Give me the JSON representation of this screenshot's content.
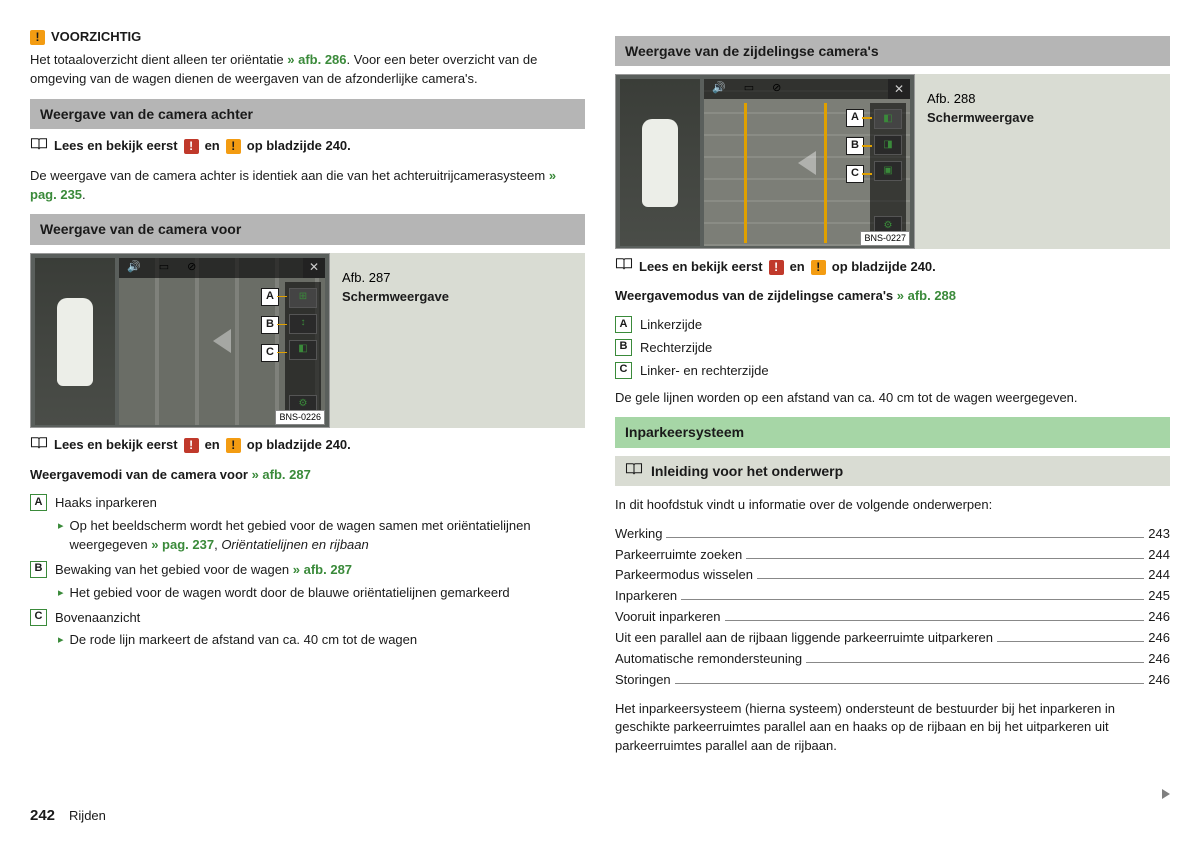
{
  "warning": {
    "title": "VOORZICHTIG",
    "text_pre": "Het totaaloverzicht dient alleen ter oriëntatie ",
    "link": "» afb. 286",
    "text_post": ". Voor een beter overzicht van de omgeving van de wagen dienen de weergaven van de afzonderlijke camera's."
  },
  "rear": {
    "heading": "Weergave van de camera achter",
    "read_pre": "Lees en bekijk eerst ",
    "read_mid": " en ",
    "read_post": " op bladzijde 240.",
    "para_pre": "De weergave van de camera achter is identiek aan die van het achteruitrijcamerasysteem ",
    "para_link": "» pag. 235",
    "para_post": "."
  },
  "front": {
    "heading": "Weergave van de camera voor",
    "fig_num": "Afb. 287",
    "fig_title": "Schermweergave",
    "fig_code": "BNS-0226",
    "read_pre": "Lees en bekijk eerst ",
    "read_mid": " en ",
    "read_post": " op bladzijde 240.",
    "subhead_pre": "Weergavemodi van de camera voor ",
    "subhead_link": "» afb. 287",
    "a_label": "Haaks inparkeren",
    "a_sub_pre": "Op het beeldscherm wordt het gebied voor de wagen samen met oriëntatielijnen weergegeven ",
    "a_sub_link": "» pag. 237",
    "a_sub_post": ", ",
    "a_sub_italic": "Oriëntatielijnen en rijbaan",
    "b_label_pre": "Bewaking van het gebied voor de wagen ",
    "b_label_link": "» afb. 287",
    "b_sub": "Het gebied voor de wagen wordt door de blauwe oriëntatielijnen gemarkeerd",
    "c_label": "Bovenaanzicht",
    "c_sub": "De rode lijn markeert de afstand van ca. 40 cm tot de wagen"
  },
  "side": {
    "heading": "Weergave van de zijdelingse camera's",
    "fig_num": "Afb. 288",
    "fig_title": "Schermweergave",
    "fig_code": "BNS-0227",
    "read_pre": "Lees en bekijk eerst ",
    "read_mid": " en ",
    "read_post": " op bladzijde 240.",
    "subhead_pre": "Weergavemodus van de zijdelingse camera's ",
    "subhead_link": "» afb. 288",
    "a": "Linkerzijde",
    "b": "Rechterzijde",
    "c": "Linker- en rechterzijde",
    "note": "De gele lijnen worden op een afstand van ca. 40 cm tot de wagen weergegeven."
  },
  "park": {
    "heading": "Inparkeersysteem",
    "intro_heading": "Inleiding voor het onderwerp",
    "intro_lead": "In dit hoofdstuk vindt u informatie over de volgende onderwerpen:",
    "toc": [
      {
        "label": "Werking",
        "page": "243"
      },
      {
        "label": "Parkeerruimte zoeken",
        "page": "244"
      },
      {
        "label": "Parkeermodus wisselen",
        "page": "244"
      },
      {
        "label": "Inparkeren",
        "page": "245"
      },
      {
        "label": "Vooruit inparkeren",
        "page": "246"
      },
      {
        "label": "Uit een parallel aan de rijbaan liggende parkeerruimte uitparkeren",
        "page": "246"
      },
      {
        "label": "Automatische remondersteuning",
        "page": "246"
      },
      {
        "label": "Storingen",
        "page": "246"
      }
    ],
    "para": "Het inparkeersysteem (hierna systeem) ondersteunt de bestuurder bij het inparkeren in geschikte parkeerruimtes parallel aan en haaks op de rijbaan en bij het uitparkeren uit parkeerruimtes parallel aan de rijbaan."
  },
  "letters": {
    "A": "A",
    "B": "B",
    "C": "C"
  },
  "footer": {
    "page": "242",
    "section": "Rijden"
  }
}
